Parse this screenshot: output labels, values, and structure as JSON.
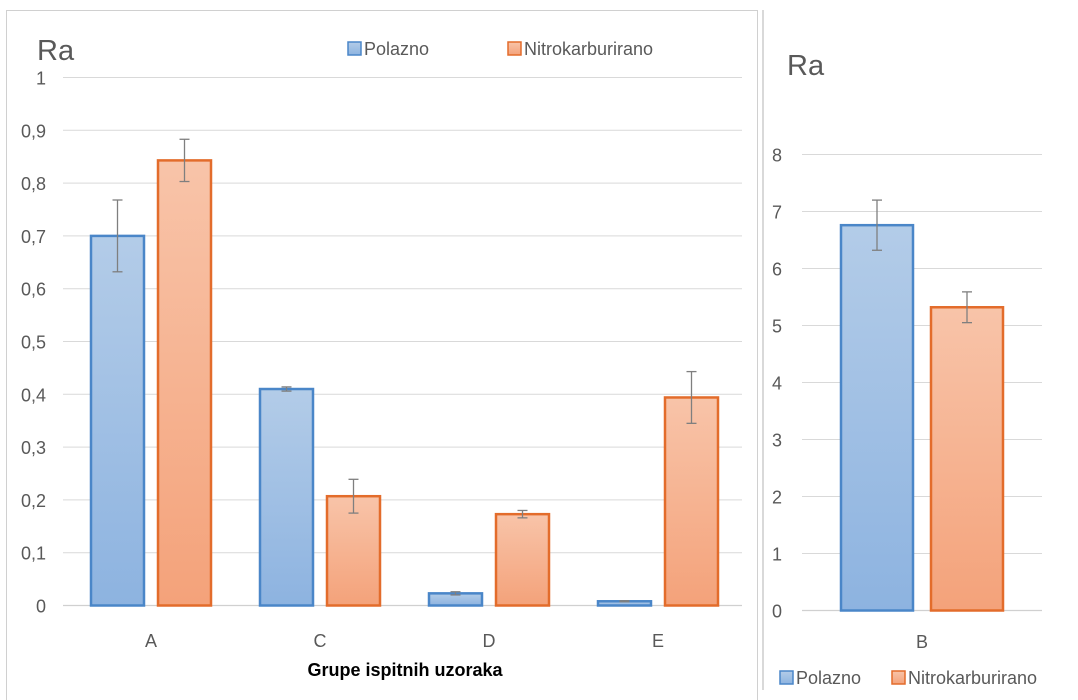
{
  "chart_data": [
    {
      "type": "bar",
      "title": "Ra",
      "xlabel": "Grupe ispitnih uzoraka",
      "ylabel": "",
      "ylim": [
        0,
        1
      ],
      "yticks": [
        "0",
        "0,1",
        "0,2",
        "0,3",
        "0,4",
        "0,5",
        "0,6",
        "0,7",
        "0,8",
        "0,9",
        "1"
      ],
      "categories": [
        "A",
        "C",
        "D",
        "E"
      ],
      "series": [
        {
          "name": "Polazno",
          "values": [
            0.7,
            0.41,
            0.023,
            0.008
          ],
          "errors": [
            0.068,
            0.004,
            0.003,
            0.001
          ]
        },
        {
          "name": "Nitrokarburirano",
          "values": [
            0.843,
            0.207,
            0.173,
            0.394
          ],
          "errors": [
            0.04,
            0.032,
            0.007,
            0.049
          ]
        }
      ],
      "grid": true,
      "legend": "top"
    },
    {
      "type": "bar",
      "title": "Ra",
      "xlabel": "",
      "ylabel": "",
      "ylim": [
        0,
        8
      ],
      "yticks": [
        "0",
        "1",
        "2",
        "3",
        "4",
        "5",
        "6",
        "7",
        "8"
      ],
      "categories": [
        "B"
      ],
      "series": [
        {
          "name": "Polazno",
          "values": [
            6.76
          ],
          "errors": [
            0.44
          ]
        },
        {
          "name": "Nitrokarburirano",
          "values": [
            5.32
          ],
          "errors": [
            0.27
          ]
        }
      ],
      "grid": true,
      "legend": "bottom"
    }
  ],
  "colors": {
    "polazno_fill_top": "#b3cce8",
    "polazno_fill_bottom": "#8db3e0",
    "polazno_stroke": "#4a86c8",
    "nitro_fill_top": "#f8c4a9",
    "nitro_fill_bottom": "#f4a27a",
    "nitro_stroke": "#e36c2b",
    "grid": "#d9d9d9",
    "axis_text": "#595959",
    "error_bar": "#7f7f7f"
  }
}
